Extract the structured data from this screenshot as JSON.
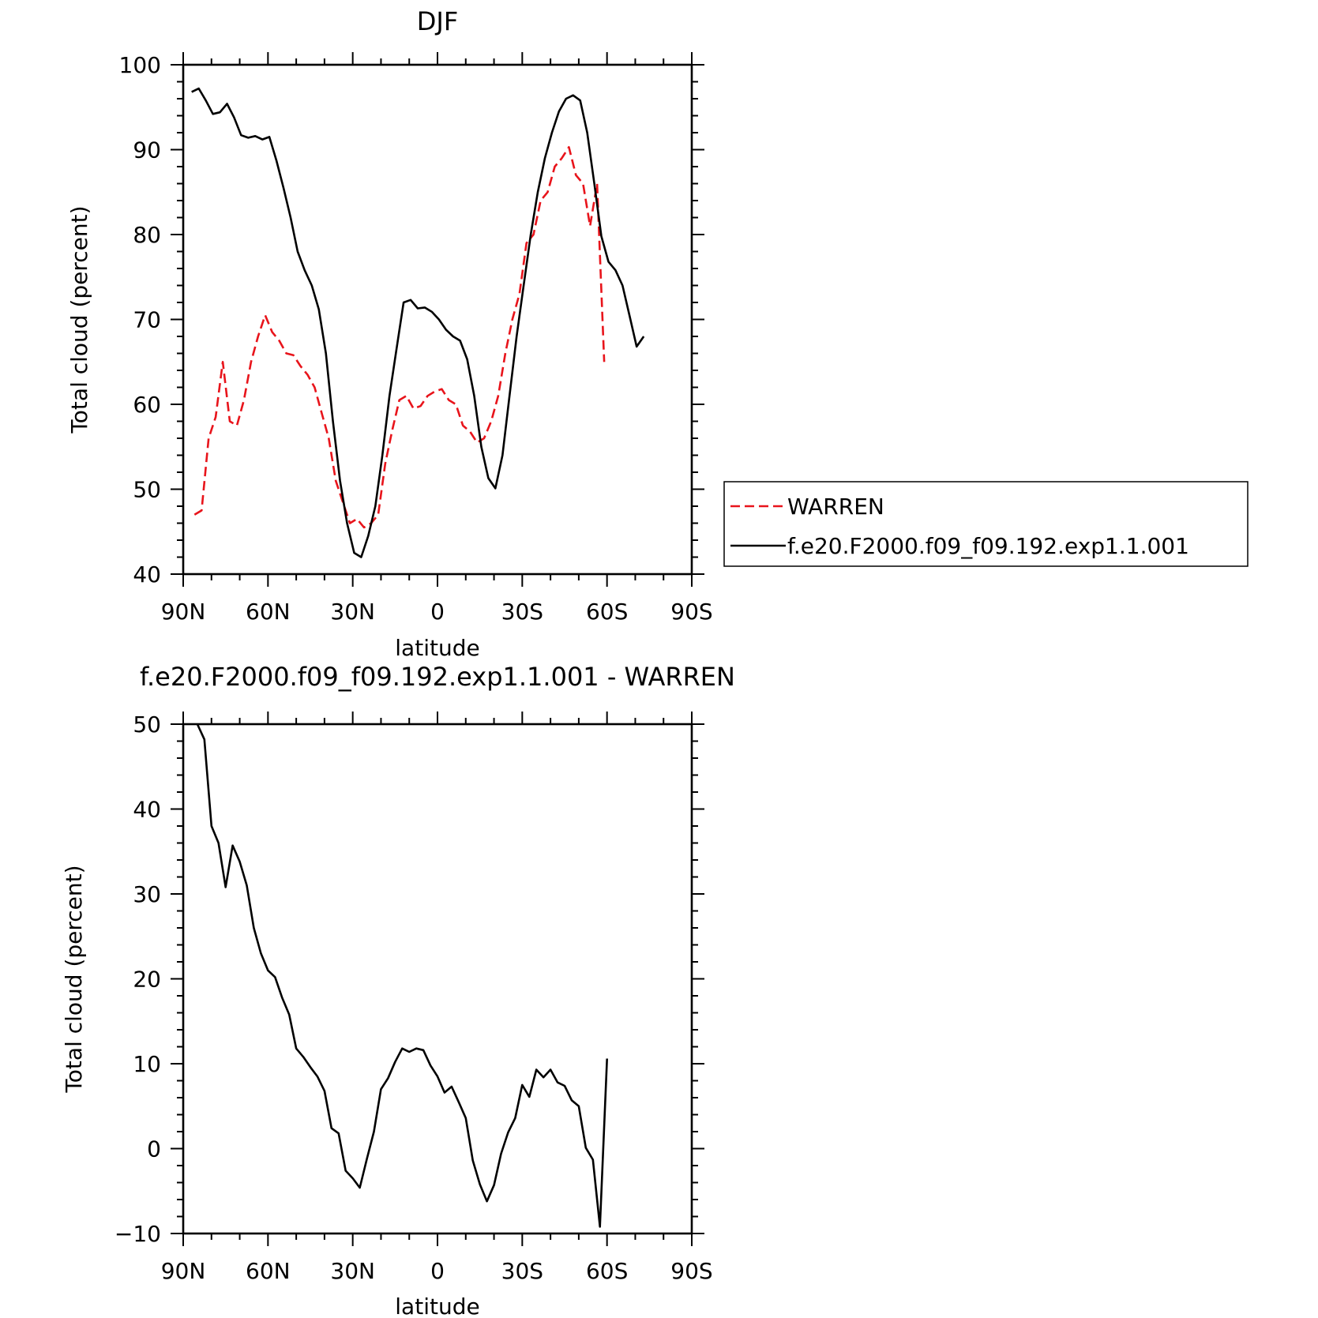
{
  "chart_data": [
    {
      "type": "line",
      "title": "DJF",
      "xlabel": "latitude",
      "ylabel": "Total cloud (percent)",
      "xlim": [
        90,
        -90
      ],
      "ylim": [
        40,
        100
      ],
      "x_ticks": [
        90,
        60,
        30,
        0,
        -30,
        -60,
        -90
      ],
      "x_tick_labels": [
        "90N",
        "60N",
        "30N",
        "0",
        "30S",
        "60S",
        "90S"
      ],
      "y_ticks": [
        40,
        50,
        60,
        70,
        80,
        90,
        100
      ],
      "y_tick_labels": [
        "40",
        "50",
        "60",
        "70",
        "80",
        "90",
        "100"
      ],
      "legend_position": "right",
      "series": [
        {
          "name": "WARREN",
          "color": "#e8141b",
          "dash": "dashed",
          "points": [
            [
              86.0,
              47.0
            ],
            [
              83.5,
              47.5
            ],
            [
              81.0,
              56.0
            ],
            [
              78.5,
              58.5
            ],
            [
              76.0,
              65.0
            ],
            [
              73.5,
              58.0
            ],
            [
              71.0,
              57.5
            ],
            [
              68.5,
              60.5
            ],
            [
              66.0,
              65.0
            ],
            [
              63.5,
              68.0
            ],
            [
              61.0,
              70.5
            ],
            [
              58.5,
              68.5
            ],
            [
              56.0,
              67.5
            ],
            [
              53.5,
              66.0
            ],
            [
              51.0,
              65.8
            ],
            [
              48.5,
              64.5
            ],
            [
              46.0,
              63.5
            ],
            [
              43.5,
              62.0
            ],
            [
              41.0,
              59.0
            ],
            [
              38.5,
              56.0
            ],
            [
              36.0,
              51.0
            ],
            [
              33.5,
              48.5
            ],
            [
              31.0,
              46.0
            ],
            [
              28.5,
              46.5
            ],
            [
              26.0,
              45.5
            ],
            [
              23.5,
              46.0
            ],
            [
              21.0,
              47.0
            ],
            [
              18.5,
              53.0
            ],
            [
              16.0,
              57.0
            ],
            [
              13.5,
              60.5
            ],
            [
              11.0,
              61.0
            ],
            [
              8.5,
              59.5
            ],
            [
              6.0,
              59.8
            ],
            [
              3.5,
              61.0
            ],
            [
              1.0,
              61.5
            ],
            [
              -1.5,
              61.8
            ],
            [
              -4.0,
              60.5
            ],
            [
              -6.5,
              60.0
            ],
            [
              -9.0,
              57.5
            ],
            [
              -11.5,
              56.8
            ],
            [
              -14.0,
              55.5
            ],
            [
              -16.5,
              56.0
            ],
            [
              -19.0,
              58.0
            ],
            [
              -21.5,
              61.0
            ],
            [
              -24.0,
              66.0
            ],
            [
              -26.5,
              70.0
            ],
            [
              -29.0,
              73.0
            ],
            [
              -31.5,
              79.0
            ],
            [
              -34.0,
              80.0
            ],
            [
              -36.5,
              84.0
            ],
            [
              -39.0,
              85.0
            ],
            [
              -41.5,
              88.0
            ],
            [
              -44.0,
              89.0
            ],
            [
              -46.5,
              90.3
            ],
            [
              -49.0,
              87.0
            ],
            [
              -51.5,
              86.0
            ],
            [
              -54.0,
              81.0
            ],
            [
              -56.5,
              86.0
            ],
            [
              -59.0,
              65.0
            ]
          ]
        },
        {
          "name": "f.e20.F2000.f09_f09.192.exp1.1.001",
          "color": "#000000",
          "dash": "solid",
          "points": [
            [
              87.0,
              96.8
            ],
            [
              84.5,
              97.2
            ],
            [
              82.0,
              95.8
            ],
            [
              79.5,
              94.2
            ],
            [
              77.0,
              94.4
            ],
            [
              74.5,
              95.4
            ],
            [
              72.0,
              93.8
            ],
            [
              69.5,
              91.7
            ],
            [
              67.0,
              91.4
            ],
            [
              64.5,
              91.6
            ],
            [
              62.0,
              91.2
            ],
            [
              59.5,
              91.5
            ],
            [
              57.0,
              88.7
            ],
            [
              54.5,
              85.5
            ],
            [
              52.0,
              82.0
            ],
            [
              49.5,
              78.0
            ],
            [
              47.0,
              75.8
            ],
            [
              44.5,
              74.0
            ],
            [
              42.0,
              71.2
            ],
            [
              39.5,
              66.0
            ],
            [
              37.0,
              58.0
            ],
            [
              34.5,
              51.0
            ],
            [
              32.0,
              46.0
            ],
            [
              29.5,
              42.5
            ],
            [
              27.0,
              42.0
            ],
            [
              24.5,
              44.5
            ],
            [
              22.0,
              48.0
            ],
            [
              19.5,
              54.0
            ],
            [
              17.0,
              61.0
            ],
            [
              14.5,
              66.5
            ],
            [
              12.0,
              72.0
            ],
            [
              9.5,
              72.3
            ],
            [
              7.0,
              71.3
            ],
            [
              4.5,
              71.4
            ],
            [
              2.0,
              70.9
            ],
            [
              -0.5,
              70.0
            ],
            [
              -3.0,
              68.8
            ],
            [
              -5.5,
              68.0
            ],
            [
              -8.0,
              67.5
            ],
            [
              -10.5,
              65.3
            ],
            [
              -13.0,
              61.0
            ],
            [
              -15.5,
              55.0
            ],
            [
              -18.0,
              51.3
            ],
            [
              -20.5,
              50.1
            ],
            [
              -23.0,
              54.0
            ],
            [
              -25.5,
              61.0
            ],
            [
              -28.0,
              68.0
            ],
            [
              -30.5,
              74.0
            ],
            [
              -33.0,
              80.0
            ],
            [
              -35.5,
              85.0
            ],
            [
              -38.0,
              89.0
            ],
            [
              -40.5,
              92.0
            ],
            [
              -43.0,
              94.5
            ],
            [
              -45.5,
              96.0
            ],
            [
              -48.0,
              96.4
            ],
            [
              -50.5,
              95.8
            ],
            [
              -53.0,
              92.0
            ],
            [
              -55.5,
              86.0
            ],
            [
              -58.0,
              79.8
            ],
            [
              -60.5,
              76.8
            ],
            [
              -63.0,
              75.8
            ],
            [
              -65.5,
              74.0
            ],
            [
              -68.0,
              70.4
            ],
            [
              -70.5,
              66.8
            ],
            [
              -73.0,
              68.0
            ]
          ]
        }
      ]
    },
    {
      "type": "line",
      "title": "f.e20.F2000.f09_f09.192.exp1.1.001 - WARREN",
      "xlabel": "latitude",
      "ylabel": "Total cloud (percent)",
      "xlim": [
        90,
        -90
      ],
      "ylim": [
        -10,
        50
      ],
      "x_ticks": [
        90,
        60,
        30,
        0,
        -30,
        -60,
        -90
      ],
      "x_tick_labels": [
        "90N",
        "60N",
        "30N",
        "0",
        "30S",
        "60S",
        "90S"
      ],
      "y_ticks": [
        -10,
        0,
        10,
        20,
        30,
        40,
        50
      ],
      "y_tick_labels": [
        "−10",
        "0",
        "10",
        "20",
        "30",
        "40",
        "50"
      ],
      "series": [
        {
          "color": "#000000",
          "dash": "solid",
          "points": [
            [
              85.0,
              50.0
            ],
            [
              82.5,
              48.2
            ],
            [
              80.0,
              38.0
            ],
            [
              77.5,
              36.0
            ],
            [
              75.0,
              30.8
            ],
            [
              72.5,
              35.7
            ],
            [
              70.0,
              33.8
            ],
            [
              67.5,
              31.0
            ],
            [
              65.0,
              26.0
            ],
            [
              62.5,
              23.0
            ],
            [
              60.0,
              21.0
            ],
            [
              57.5,
              20.2
            ],
            [
              55.0,
              17.8
            ],
            [
              52.5,
              15.8
            ],
            [
              50.0,
              11.8
            ],
            [
              47.5,
              10.8
            ],
            [
              45.0,
              9.6
            ],
            [
              42.5,
              8.5
            ],
            [
              40.0,
              6.8
            ],
            [
              37.5,
              2.4
            ],
            [
              35.0,
              1.8
            ],
            [
              32.5,
              -2.6
            ],
            [
              30.0,
              -3.5
            ],
            [
              27.5,
              -4.6
            ],
            [
              25.0,
              -1.2
            ],
            [
              22.5,
              2.0
            ],
            [
              20.0,
              7.0
            ],
            [
              17.5,
              8.3
            ],
            [
              15.0,
              10.2
            ],
            [
              12.5,
              11.8
            ],
            [
              10.0,
              11.4
            ],
            [
              7.5,
              11.8
            ],
            [
              5.0,
              11.6
            ],
            [
              2.5,
              9.8
            ],
            [
              0.0,
              8.5
            ],
            [
              -2.5,
              6.6
            ],
            [
              -5.0,
              7.3
            ],
            [
              -7.5,
              5.5
            ],
            [
              -10.0,
              3.6
            ],
            [
              -12.5,
              -1.4
            ],
            [
              -15.0,
              -4.2
            ],
            [
              -17.5,
              -6.2
            ],
            [
              -20.0,
              -4.3
            ],
            [
              -22.5,
              -0.6
            ],
            [
              -25.0,
              1.9
            ],
            [
              -27.5,
              3.6
            ],
            [
              -30.0,
              7.5
            ],
            [
              -32.5,
              6.1
            ],
            [
              -35.0,
              9.3
            ],
            [
              -37.5,
              8.4
            ],
            [
              -40.0,
              9.3
            ],
            [
              -42.5,
              7.8
            ],
            [
              -45.0,
              7.4
            ],
            [
              -47.5,
              5.7
            ],
            [
              -50.0,
              5.0
            ],
            [
              -52.5,
              0.1
            ],
            [
              -55.0,
              -1.3
            ],
            [
              -57.5,
              -9.2
            ],
            [
              -60.0,
              10.6
            ]
          ]
        }
      ]
    }
  ]
}
